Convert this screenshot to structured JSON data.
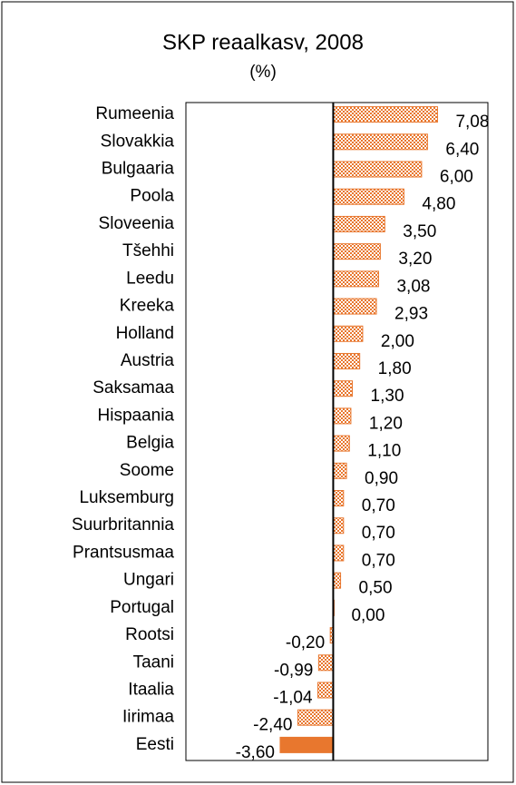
{
  "chart_data": {
    "type": "hbar",
    "title": "SKP reaalkasv, 2008",
    "subtitle": "(%)",
    "categories": [
      "Rumeenia",
      "Slovakkia",
      "Bulgaaria",
      "Poola",
      "Sloveenia",
      "Tšehhi",
      "Leedu",
      "Kreeka",
      "Holland",
      "Austria",
      "Saksamaa",
      "Hispaania",
      "Belgia",
      "Soome",
      "Luksemburg",
      "Suurbritannia",
      "Prantsusmaa",
      "Ungari",
      "Portugal",
      "Rootsi",
      "Taani",
      "Itaalia",
      "Iirimaa",
      "Eesti"
    ],
    "values": [
      7.08,
      6.4,
      6.0,
      4.8,
      3.5,
      3.2,
      3.08,
      2.93,
      2.0,
      1.8,
      1.3,
      1.2,
      1.1,
      0.9,
      0.7,
      0.7,
      0.7,
      0.5,
      0.0,
      -0.2,
      -0.99,
      -1.04,
      -2.4,
      -3.6
    ],
    "value_labels": [
      "7,08",
      "6,40",
      "6,00",
      "4,80",
      "3,50",
      "3,20",
      "3,08",
      "2,93",
      "2,00",
      "1,80",
      "1,30",
      "1,20",
      "1,10",
      "0,90",
      "0,70",
      "0,70",
      "0,70",
      "0,50",
      "0,00",
      "-0,20",
      "-0,99",
      "-1,04",
      "-2,40",
      "-3,60"
    ],
    "color": "#e8772e",
    "fill_styles": [
      "checker",
      "checker",
      "checker",
      "checker",
      "checker",
      "checker",
      "checker",
      "checker",
      "checker",
      "checker",
      "checker",
      "checker",
      "checker",
      "checker",
      "checker",
      "checker",
      "checker",
      "checker",
      "checker",
      "checker",
      "checker",
      "checker",
      "checker",
      "solid"
    ],
    "xlim": [
      -10,
      10.5
    ]
  }
}
